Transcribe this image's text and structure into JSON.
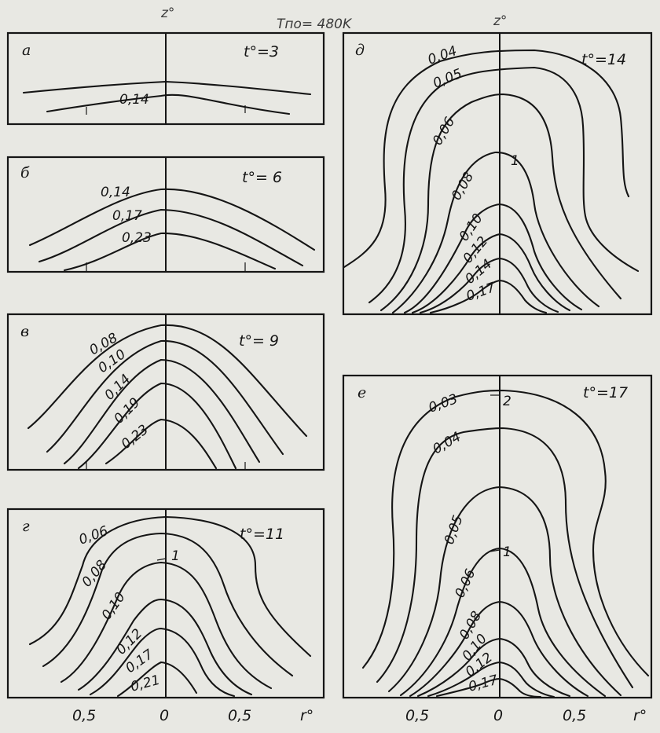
{
  "header": {
    "z_left": "z°",
    "z_right": "z°",
    "temperature": "Tпо= 480K"
  },
  "panels": [
    {
      "tag": "a",
      "time": "t°=3",
      "labels": [
        "0,14"
      ]
    },
    {
      "tag": "б",
      "time": "t°= 6",
      "labels": [
        "0,14",
        "0,17",
        "0,23"
      ]
    },
    {
      "tag": "в",
      "time": "t°= 9",
      "labels": [
        "0,08",
        "0,10",
        "0,14",
        "0,19",
        "0,23"
      ]
    },
    {
      "tag": "г",
      "time": "t°=11",
      "labels": [
        "0,06",
        "0,08",
        "1",
        "0,10",
        "0,12",
        "0,17",
        "0,21"
      ]
    },
    {
      "tag": "д",
      "time": "t°=14",
      "labels": [
        "0,04",
        "0,05",
        "0,06",
        "1",
        "0,08",
        "0,10",
        "0,12",
        "0,14",
        "0,17"
      ]
    },
    {
      "tag": "е",
      "time": "t°=17",
      "labels": [
        "0,03",
        "2",
        "0,04",
        "0,05",
        "1",
        "0,06",
        "0,08",
        "0,10",
        "0,12",
        "0,17"
      ]
    }
  ],
  "x_axis": {
    "left_ticks": [
      "0,5",
      "0",
      "0,5"
    ],
    "left_label": "r°",
    "right_ticks": [
      "0,5",
      "0",
      "0,5"
    ],
    "right_label": "r°"
  }
}
